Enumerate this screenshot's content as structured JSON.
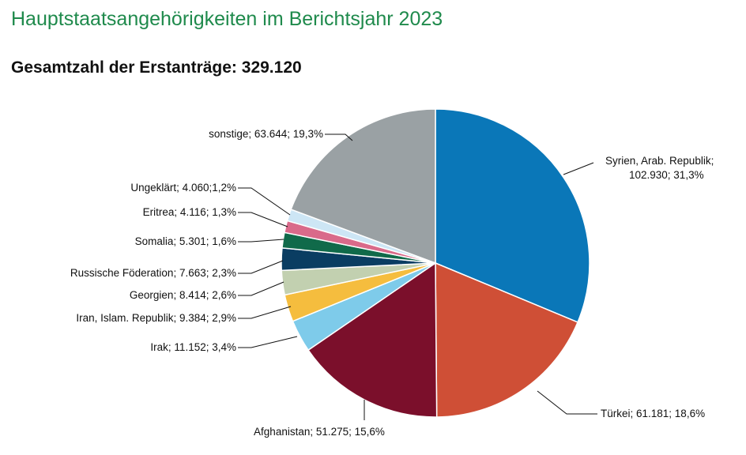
{
  "title": "Hauptstaatsangehörigkeiten im Berichtsjahr 2023",
  "subtitle": "Gesamtzahl der Erstanträge: 329.120",
  "chart_data": {
    "type": "pie",
    "title": "Hauptstaatsangehörigkeiten im Berichtsjahr 2023",
    "subtitle": "Gesamtzahl der Erstanträge: 329.120",
    "total": 329120,
    "start_angle": "12 o'clock, clockwise",
    "slices": [
      {
        "name": "Syrien, Arab. Republik",
        "value": 102930,
        "percent": 31.3,
        "color": "#0a77b8",
        "label_lines": [
          "Syrien, Arab. Republik;",
          "102.930; 31,3%"
        ]
      },
      {
        "name": "Türkei",
        "value": 61181,
        "percent": 18.6,
        "color": "#cf4f36",
        "label_lines": [
          "Türkei; 61.181; 18,6%"
        ]
      },
      {
        "name": "Afghanistan",
        "value": 51275,
        "percent": 15.6,
        "color": "#7b0f2b",
        "label_lines": [
          "Afghanistan; 51.275; 15,6%"
        ]
      },
      {
        "name": "Irak",
        "value": 11152,
        "percent": 3.4,
        "color": "#7ecbea",
        "label_lines": [
          "Irak; 11.152; 3,4%"
        ]
      },
      {
        "name": "Iran, Islam. Republik",
        "value": 9384,
        "percent": 2.9,
        "color": "#f5bd3e",
        "label_lines": [
          "Iran, Islam. Republik; 9.384; 2,9%"
        ]
      },
      {
        "name": "Georgien",
        "value": 8414,
        "percent": 2.6,
        "color": "#c2d0b0",
        "label_lines": [
          "Georgien; 8.414; 2,6%"
        ]
      },
      {
        "name": "Russische Föderation",
        "value": 7663,
        "percent": 2.3,
        "color": "#0a3d62",
        "label_lines": [
          "Russische Föderation; 7.663; 2,3%"
        ]
      },
      {
        "name": "Somalia",
        "value": 5301,
        "percent": 1.6,
        "color": "#106a4a",
        "label_lines": [
          "Somalia; 5.301; 1,6%"
        ]
      },
      {
        "name": "Eritrea",
        "value": 4116,
        "percent": 1.3,
        "color": "#d96a8a",
        "label_lines": [
          "Eritrea; 4.116; 1,3%"
        ]
      },
      {
        "name": "Ungeklärt",
        "value": 4060,
        "percent": 1.2,
        "color": "#cde6f5",
        "label_lines": [
          "Ungeklärt; 4.060;1,2%"
        ]
      },
      {
        "name": "sonstige",
        "value": 63644,
        "percent": 19.3,
        "color": "#9aa1a4",
        "label_lines": [
          "sonstige; 63.644; 19,3%"
        ]
      }
    ]
  }
}
